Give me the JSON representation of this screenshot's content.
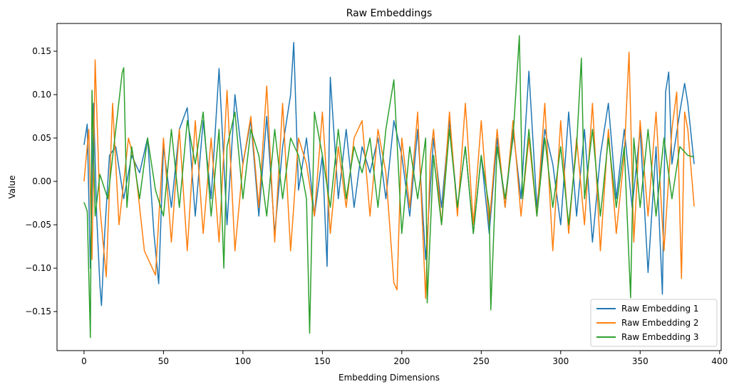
{
  "chart_data": {
    "type": "line",
    "title": "Raw Embeddings",
    "xlabel": "Embedding Dimensions",
    "ylabel": "Value",
    "xlim": [
      -17,
      401
    ],
    "ylim": [
      -0.195,
      0.182
    ],
    "x_ticks": [
      0,
      50,
      100,
      150,
      200,
      250,
      300,
      350,
      400
    ],
    "y_ticks": [
      -0.15,
      -0.1,
      -0.05,
      0.0,
      0.05,
      0.1,
      0.15
    ],
    "y_tick_labels": [
      "−0.15",
      "−0.10",
      "−0.05",
      "0.00",
      "0.05",
      "0.10",
      "0.15"
    ],
    "x_tick_labels": [
      "0",
      "50",
      "100",
      "150",
      "200",
      "250",
      "300",
      "350",
      "400"
    ],
    "grid": false,
    "legend_position": "lower-right",
    "series": [
      {
        "name": "Raw Embedding 1",
        "color": "#1f77b4",
        "x": [
          0,
          2,
          4,
          6,
          8,
          10,
          11,
          13,
          16,
          20,
          25,
          30,
          35,
          40,
          44,
          47,
          50,
          55,
          60,
          65,
          70,
          75,
          80,
          85,
          90,
          95,
          100,
          105,
          110,
          115,
          120,
          125,
          130,
          132,
          135,
          140,
          145,
          150,
          153,
          155,
          160,
          165,
          170,
          175,
          180,
          185,
          190,
          195,
          200,
          205,
          210,
          215,
          220,
          225,
          230,
          235,
          240,
          245,
          250,
          255,
          260,
          265,
          270,
          275,
          280,
          285,
          290,
          295,
          300,
          305,
          310,
          315,
          320,
          325,
          330,
          335,
          340,
          345,
          350,
          355,
          360,
          364,
          366,
          368,
          370,
          375,
          378,
          380,
          384
        ],
        "y": [
          0.042,
          0.066,
          -0.1,
          0.09,
          -0.04,
          -0.12,
          -0.143,
          -0.06,
          0.03,
          0.04,
          -0.02,
          0.03,
          0.01,
          0.05,
          -0.06,
          -0.118,
          0.04,
          -0.03,
          0.06,
          0.085,
          -0.04,
          0.07,
          -0.02,
          0.13,
          -0.05,
          0.1,
          0.02,
          0.07,
          -0.04,
          0.075,
          -0.06,
          0.04,
          0.1,
          0.16,
          -0.01,
          0.05,
          -0.04,
          0.03,
          -0.098,
          0.12,
          -0.02,
          0.06,
          -0.03,
          0.04,
          0.01,
          0.05,
          -0.02,
          0.07,
          0.03,
          -0.04,
          0.06,
          -0.09,
          0.05,
          -0.03,
          0.07,
          -0.03,
          0.04,
          -0.06,
          0.03,
          -0.06,
          0.05,
          -0.03,
          0.06,
          -0.02,
          0.127,
          -0.03,
          0.06,
          0.02,
          -0.05,
          0.08,
          -0.04,
          0.06,
          -0.07,
          0.03,
          0.09,
          -0.02,
          0.06,
          -0.03,
          0.06,
          -0.105,
          0.04,
          -0.13,
          0.103,
          0.126,
          0.02,
          0.08,
          0.113,
          0.09,
          0.02
        ]
      },
      {
        "name": "Raw Embedding 2",
        "color": "#ff7f0e",
        "x": [
          0,
          3,
          5,
          7,
          10,
          14,
          18,
          22,
          28,
          32,
          38,
          45,
          50,
          55,
          60,
          65,
          70,
          75,
          80,
          85,
          90,
          95,
          100,
          105,
          110,
          115,
          120,
          125,
          130,
          135,
          140,
          145,
          150,
          155,
          160,
          165,
          170,
          175,
          180,
          185,
          190,
          195,
          197,
          200,
          205,
          210,
          215,
          218,
          220,
          225,
          230,
          235,
          240,
          245,
          250,
          255,
          260,
          265,
          270,
          275,
          280,
          285,
          290,
          295,
          300,
          305,
          310,
          315,
          320,
          325,
          330,
          335,
          340,
          343,
          346,
          350,
          355,
          360,
          365,
          370,
          373,
          376,
          378,
          380,
          384
        ],
        "y": [
          0.0,
          0.06,
          -0.09,
          0.14,
          -0.03,
          -0.11,
          0.09,
          -0.05,
          0.05,
          0.02,
          -0.08,
          -0.108,
          0.05,
          -0.07,
          0.06,
          -0.08,
          0.07,
          -0.06,
          0.05,
          -0.07,
          0.105,
          -0.08,
          0.02,
          0.075,
          -0.03,
          0.11,
          -0.07,
          0.09,
          -0.08,
          0.05,
          0.02,
          -0.04,
          0.08,
          -0.06,
          0.04,
          -0.03,
          0.05,
          0.07,
          -0.04,
          0.06,
          0.01,
          -0.117,
          -0.125,
          0.05,
          -0.03,
          0.08,
          -0.135,
          0.03,
          0.06,
          -0.05,
          0.08,
          -0.04,
          0.09,
          -0.05,
          0.07,
          -0.05,
          0.06,
          -0.03,
          0.07,
          -0.04,
          0.05,
          -0.04,
          0.09,
          -0.08,
          0.07,
          -0.06,
          0.05,
          -0.05,
          0.09,
          -0.08,
          0.06,
          -0.06,
          0.03,
          0.149,
          -0.07,
          0.07,
          -0.04,
          0.08,
          -0.08,
          0.06,
          0.103,
          -0.112,
          0.08,
          0.06,
          -0.029
        ]
      },
      {
        "name": "Raw Embedding 3",
        "color": "#2ca02c",
        "x": [
          0,
          2,
          4,
          5,
          7,
          10,
          15,
          20,
          24,
          25,
          27,
          30,
          35,
          40,
          45,
          50,
          55,
          60,
          65,
          70,
          75,
          80,
          85,
          88,
          90,
          95,
          100,
          105,
          110,
          115,
          120,
          125,
          130,
          135,
          140,
          142,
          145,
          150,
          155,
          160,
          165,
          170,
          175,
          180,
          185,
          190,
          195,
          200,
          205,
          210,
          215,
          216,
          220,
          225,
          230,
          235,
          240,
          245,
          250,
          255,
          256,
          260,
          265,
          270,
          274,
          276,
          280,
          285,
          290,
          295,
          300,
          305,
          310,
          313,
          315,
          320,
          325,
          330,
          335,
          340,
          344,
          346,
          350,
          355,
          360,
          365,
          370,
          375,
          380,
          384
        ],
        "y": [
          -0.024,
          -0.034,
          -0.18,
          0.105,
          -0.04,
          0.008,
          -0.02,
          0.06,
          0.125,
          0.131,
          -0.03,
          0.04,
          -0.02,
          0.05,
          -0.01,
          -0.04,
          0.06,
          -0.03,
          0.07,
          0.02,
          0.08,
          -0.04,
          0.06,
          -0.1,
          0.04,
          0.08,
          -0.02,
          0.06,
          0.03,
          -0.04,
          0.06,
          -0.02,
          0.05,
          0.03,
          -0.02,
          -0.175,
          0.08,
          0.03,
          -0.03,
          0.06,
          -0.02,
          0.04,
          0.01,
          0.05,
          -0.03,
          0.06,
          0.117,
          -0.06,
          0.04,
          -0.02,
          0.05,
          -0.14,
          0.03,
          -0.05,
          0.06,
          -0.03,
          0.04,
          -0.06,
          0.03,
          -0.03,
          -0.148,
          0.04,
          -0.02,
          0.05,
          0.168,
          -0.02,
          0.06,
          -0.04,
          0.05,
          -0.03,
          0.04,
          -0.05,
          0.04,
          0.142,
          -0.02,
          0.06,
          -0.04,
          0.05,
          -0.03,
          0.04,
          -0.134,
          0.05,
          -0.03,
          0.06,
          -0.04,
          0.05,
          -0.02,
          0.04,
          0.03,
          0.028
        ]
      }
    ]
  }
}
